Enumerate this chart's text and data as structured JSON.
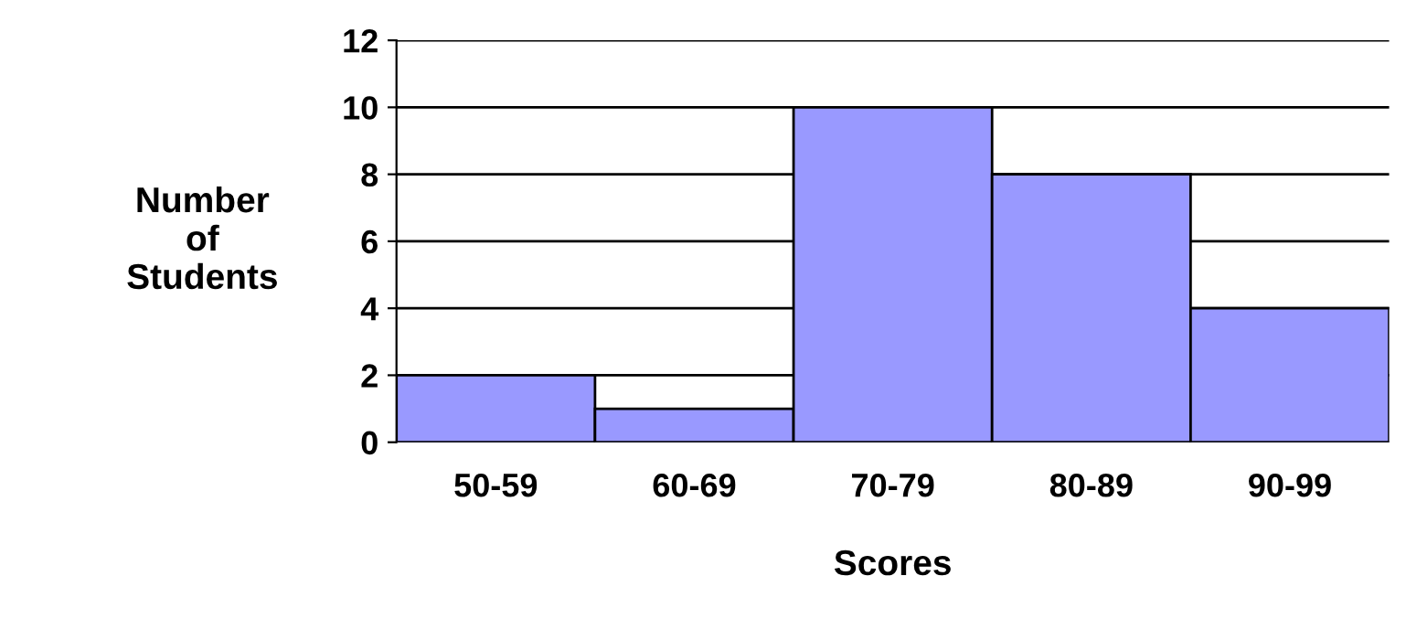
{
  "chart_data": {
    "type": "bar",
    "xlabel": "Scores",
    "ylabel": "Number\nof\nStudents",
    "categories": [
      "50-59",
      "60-69",
      "70-79",
      "80-89",
      "90-99"
    ],
    "values": [
      2,
      1,
      10,
      8,
      4
    ],
    "color": "#9999ff",
    "ylim": [
      0,
      12
    ],
    "yticks": [
      0,
      2,
      4,
      6,
      8,
      10,
      12
    ],
    "grid": "y",
    "legend": false
  }
}
